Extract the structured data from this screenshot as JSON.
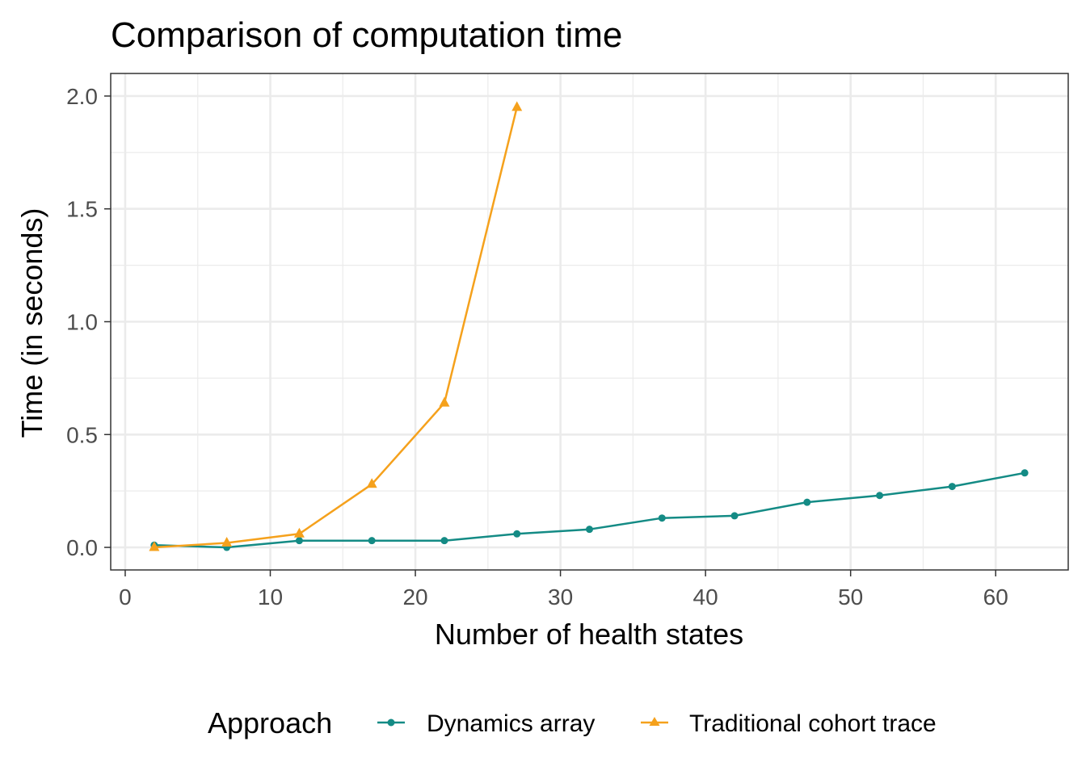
{
  "chart_data": {
    "type": "line",
    "title": "Comparison of computation time",
    "xlabel": "Number of health states",
    "ylabel": "Time (in seconds)",
    "xlim": [
      -1,
      65
    ],
    "ylim": [
      -0.1,
      2.1
    ],
    "x_ticks": [
      0,
      10,
      20,
      30,
      40,
      50,
      60
    ],
    "x_tick_labels": [
      "0",
      "10",
      "20",
      "30",
      "40",
      "50",
      "60"
    ],
    "y_ticks": [
      0.0,
      0.5,
      1.0,
      1.5,
      2.0
    ],
    "y_tick_labels": [
      "0.0",
      "0.5",
      "1.0",
      "1.5",
      "2.0"
    ],
    "grid": true,
    "legend": {
      "title": "Approach",
      "position": "bottom"
    },
    "series": [
      {
        "name": "Dynamics array",
        "color": "#148b85",
        "marker": "circle",
        "x": [
          2,
          7,
          12,
          17,
          22,
          27,
          32,
          37,
          42,
          47,
          52,
          57,
          62
        ],
        "y": [
          0.01,
          0.0,
          0.03,
          0.03,
          0.03,
          0.06,
          0.08,
          0.13,
          0.14,
          0.2,
          0.23,
          0.27,
          0.33
        ]
      },
      {
        "name": "Traditional cohort trace",
        "color": "#f5a11c",
        "marker": "triangle",
        "x": [
          2,
          7,
          12,
          17,
          22,
          27
        ],
        "y": [
          0.0,
          0.02,
          0.06,
          0.28,
          0.64,
          1.95
        ]
      }
    ]
  }
}
